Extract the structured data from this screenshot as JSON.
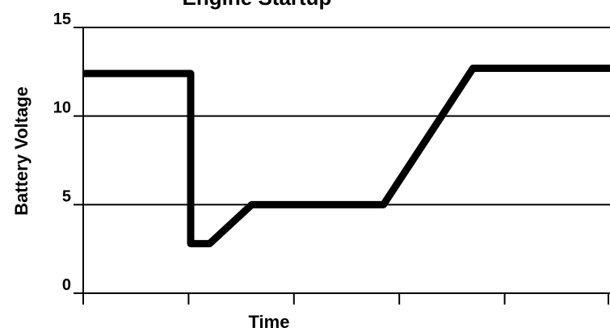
{
  "chart_data": {
    "type": "line",
    "title": "Engine Startup",
    "xlabel": "Time",
    "ylabel": "Battery Voltage",
    "ylim": [
      0,
      15
    ],
    "yticks": [
      0,
      5,
      10,
      15
    ],
    "ytick_labels": [
      "0",
      "5",
      "10",
      "15"
    ],
    "xlim": [
      0,
      5
    ],
    "xticks": [
      0,
      1,
      2,
      3,
      4,
      5
    ],
    "grid": true,
    "line_color": "#000000",
    "series": [
      {
        "x": [
          0,
          1.02,
          1.02,
          1.2,
          1.6,
          2.85,
          3.7,
          5
        ],
        "y": [
          12.4,
          12.4,
          2.8,
          2.8,
          5.0,
          5.0,
          12.7,
          12.7
        ]
      }
    ]
  }
}
